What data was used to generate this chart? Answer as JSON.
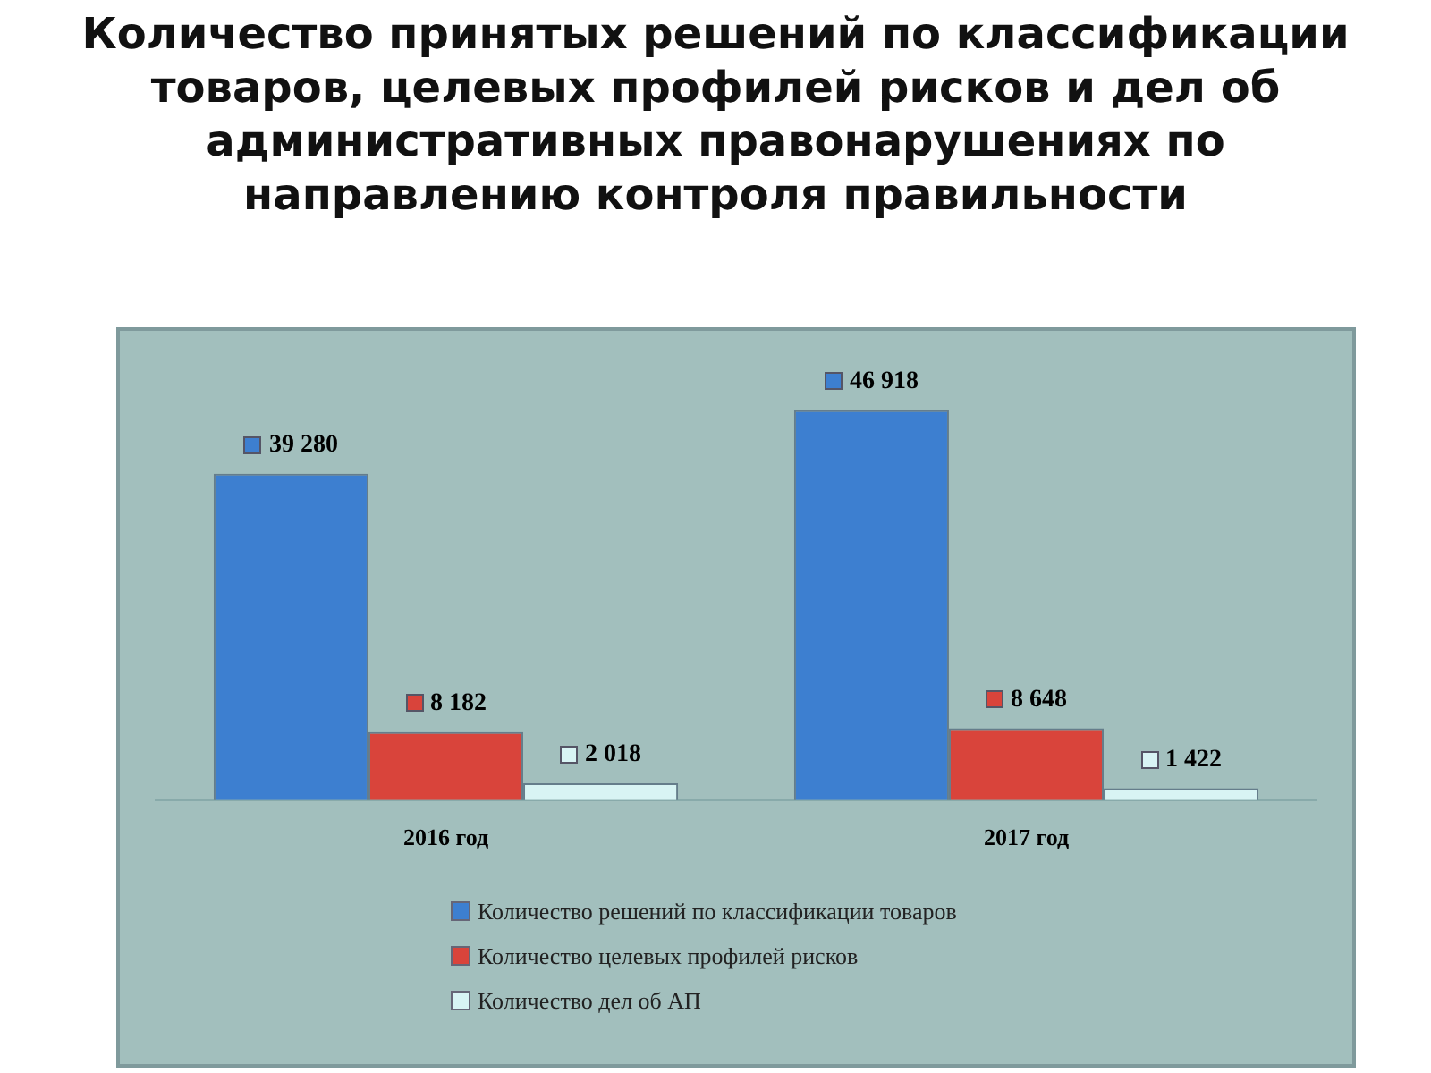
{
  "chart_data": {
    "type": "bar",
    "title": "Количество принятых решений по классификации товаров, целевых профилей рисков и дел об административных правонарушениях по направлению контроля правильности",
    "categories": [
      "2016 год",
      "2017 год"
    ],
    "series": [
      {
        "name": "Количество решений по классификации товаров",
        "color": "#3d7fd0",
        "values": [
          39280,
          46918
        ],
        "value_labels": [
          "39 280",
          "46 918"
        ]
      },
      {
        "name": "Количество целевых профилей рисков",
        "color": "#d9443b",
        "values": [
          8182,
          8648
        ],
        "value_labels": [
          "8 182",
          "8 648"
        ]
      },
      {
        "name": "Количество дел об АП",
        "color": "#d8f4f4",
        "values": [
          2018,
          1422
        ],
        "value_labels": [
          "2 018",
          "1 422"
        ]
      }
    ],
    "legend": "bottom",
    "grid": false
  }
}
